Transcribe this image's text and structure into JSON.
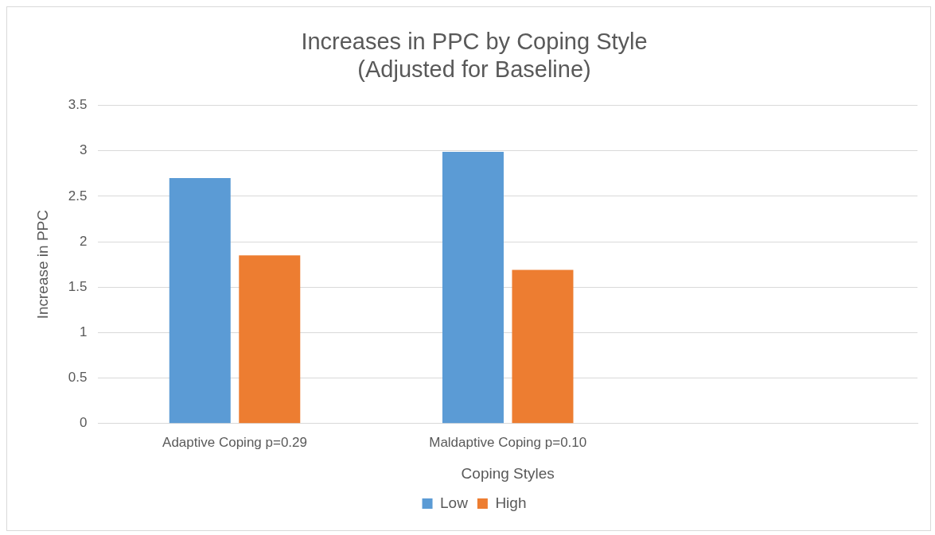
{
  "chart_data": {
    "type": "bar",
    "title": [
      "Increases in PPC by Coping Style",
      "(Adjusted for Baseline)"
    ],
    "xlabel": "Coping Styles",
    "ylabel": "Increase in PPC",
    "categories": [
      "Adaptive Coping p=0.29",
      "Maldaptive Coping p=0.10",
      null
    ],
    "series": [
      {
        "name": "Low",
        "color": "#5b9bd5",
        "values": [
          2.7,
          2.99,
          null
        ]
      },
      {
        "name": "High",
        "color": "#ed7d31",
        "values": [
          1.85,
          1.69,
          null
        ]
      }
    ],
    "ylim": [
      0,
      3.5
    ],
    "yticks": [
      0,
      0.5,
      1,
      1.5,
      2,
      2.5,
      3,
      3.5
    ],
    "grid": "y",
    "legend": "bottom"
  }
}
